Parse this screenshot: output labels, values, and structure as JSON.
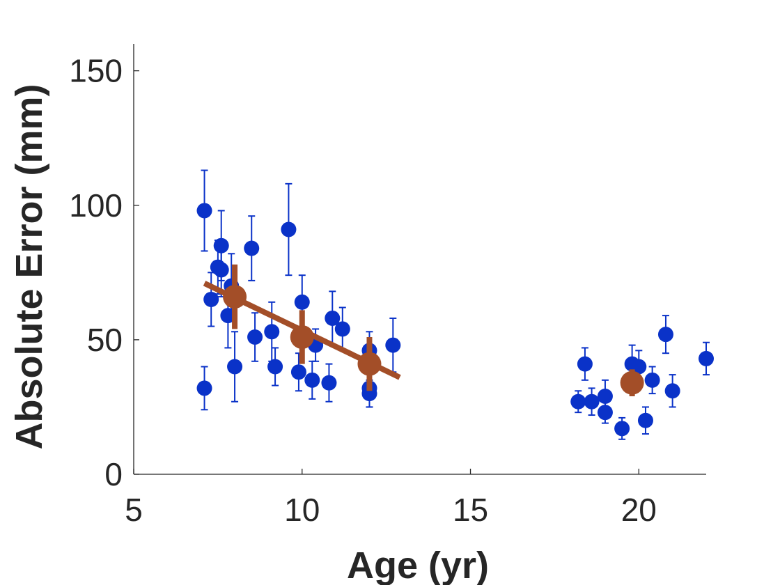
{
  "chart_data": {
    "type": "scatter",
    "title": "",
    "xlabel": "Age (yr)",
    "ylabel": "Absolute Error (mm)",
    "xlim": [
      5,
      22
    ],
    "ylim": [
      0,
      160
    ],
    "xticks": [
      5,
      10,
      15,
      20
    ],
    "yticks": [
      0,
      50,
      100,
      150
    ],
    "grid": false,
    "legend": "none",
    "colors": {
      "individual": "#0a32c8",
      "group": "#a34e28",
      "axis": "#262626"
    },
    "series": [
      {
        "marker": "circle",
        "points": [
          {
            "x": 7.1,
            "y": 98,
            "err": 15
          },
          {
            "x": 7.1,
            "y": 32,
            "err": 8
          },
          {
            "x": 7.3,
            "y": 65,
            "err": 10
          },
          {
            "x": 7.5,
            "y": 77,
            "err": 10
          },
          {
            "x": 7.6,
            "y": 85,
            "err": 13
          },
          {
            "x": 7.6,
            "y": 76,
            "err": 10
          },
          {
            "x": 7.8,
            "y": 59,
            "err": 12
          },
          {
            "x": 7.9,
            "y": 70,
            "err": 12
          },
          {
            "x": 8.0,
            "y": 40,
            "err": 13
          },
          {
            "x": 8.5,
            "y": 84,
            "err": 12
          },
          {
            "x": 8.6,
            "y": 51,
            "err": 9
          },
          {
            "x": 9.1,
            "y": 53,
            "err": 11
          },
          {
            "x": 9.2,
            "y": 40,
            "err": 7
          },
          {
            "x": 9.6,
            "y": 91,
            "err": 17
          },
          {
            "x": 9.9,
            "y": 38,
            "err": 7
          },
          {
            "x": 10.0,
            "y": 64,
            "err": 10
          },
          {
            "x": 10.3,
            "y": 35,
            "err": 7
          },
          {
            "x": 10.4,
            "y": 48,
            "err": 6
          },
          {
            "x": 10.8,
            "y": 34,
            "err": 7
          },
          {
            "x": 10.9,
            "y": 58,
            "err": 10
          },
          {
            "x": 11.2,
            "y": 54,
            "err": 8
          },
          {
            "x": 12.0,
            "y": 46,
            "err": 7
          },
          {
            "x": 12.0,
            "y": 32,
            "err": 7
          },
          {
            "x": 12.0,
            "y": 30,
            "err": 5
          },
          {
            "x": 12.7,
            "y": 48,
            "err": 10
          },
          {
            "x": 18.2,
            "y": 27,
            "err": 4
          },
          {
            "x": 18.4,
            "y": 41,
            "err": 6
          },
          {
            "x": 18.6,
            "y": 27,
            "err": 5
          },
          {
            "x": 19.0,
            "y": 29,
            "err": 6
          },
          {
            "x": 19.0,
            "y": 23,
            "err": 4
          },
          {
            "x": 19.5,
            "y": 17,
            "err": 4
          },
          {
            "x": 19.8,
            "y": 41,
            "err": 7
          },
          {
            "x": 20.0,
            "y": 40,
            "err": 6
          },
          {
            "x": 20.2,
            "y": 20,
            "err": 5
          },
          {
            "x": 20.4,
            "y": 35,
            "err": 5
          },
          {
            "x": 20.8,
            "y": 52,
            "err": 7
          },
          {
            "x": 21.0,
            "y": 31,
            "err": 6
          },
          {
            "x": 22.0,
            "y": 43,
            "err": 6
          }
        ]
      },
      {
        "marker": "circle",
        "points": [
          {
            "x": 8.0,
            "y": 66,
            "err": 12
          },
          {
            "x": 10.0,
            "y": 51,
            "err": 10
          },
          {
            "x": 12.0,
            "y": 41,
            "err": 10
          },
          {
            "x": 19.8,
            "y": 34,
            "err": 5
          }
        ]
      }
    ],
    "fit_line": {
      "x": [
        7.1,
        12.9
      ],
      "y": [
        71,
        36
      ]
    }
  }
}
